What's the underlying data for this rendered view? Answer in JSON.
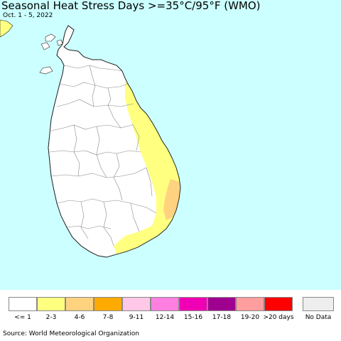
{
  "title": "Seasonal Heat Stress Days >=35°C/95°F (WMO)",
  "subtitle": "Oct. 1 - 5, 2022",
  "source": "Source: World Meteorological Organization",
  "map": {
    "ocean_color": "#ccffff",
    "land_color": "#ffffff",
    "border_color": "#222222",
    "district_color": "#888888"
  },
  "legend": [
    {
      "label": "<= 1",
      "color": "#ffffff"
    },
    {
      "label": "2-3",
      "color": "#ffff80"
    },
    {
      "label": "4-6",
      "color": "#ffd280"
    },
    {
      "label": "7-8",
      "color": "#ffaa00"
    },
    {
      "label": "9-11",
      "color": "#ffc8e6"
    },
    {
      "label": "12-14",
      "color": "#ff80e0"
    },
    {
      "label": "15-16",
      "color": "#f000b4"
    },
    {
      "label": "17-18",
      "color": "#a00090"
    },
    {
      "label": "19-20",
      "color": "#ff9e9e"
    },
    {
      "label": ">20 days",
      "color": "#ff0000"
    },
    {
      "label": "No Data",
      "color": "#eeeeee"
    }
  ]
}
